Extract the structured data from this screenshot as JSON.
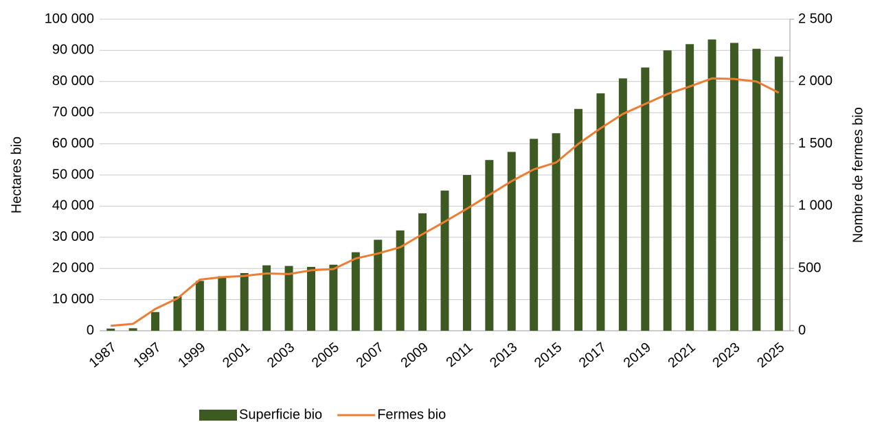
{
  "chart_data": {
    "type": "bar-line",
    "categories": [
      "1987",
      null,
      "1997",
      null,
      "1999",
      null,
      "2001",
      null,
      "2003",
      null,
      "2005",
      null,
      "2007",
      null,
      "2009",
      null,
      "2011",
      null,
      "2013",
      null,
      "2015",
      null,
      "2017",
      null,
      "2019",
      null,
      "2021",
      null,
      "2023",
      null,
      "2025"
    ],
    "ylabel": "Hectares bio",
    "y2label": "Nombre de fermes bio",
    "ylim": [
      0,
      100000
    ],
    "yticks": [
      0,
      {
        "value": 10000,
        "label": "10 000"
      },
      {
        "value": 20000,
        "label": "20 000"
      },
      {
        "value": 30000,
        "label": "30 000"
      },
      {
        "value": 40000,
        "label": "40 000"
      },
      {
        "value": 50000,
        "label": "50 000"
      },
      {
        "value": 60000,
        "label": "60 000"
      },
      {
        "value": 70000,
        "label": "70 000"
      },
      {
        "value": 80000,
        "label": "80 000"
      },
      {
        "value": 90000,
        "label": "90 000"
      },
      {
        "value": 100000,
        "label": "100 000"
      }
    ],
    "y2lim": [
      0,
      2500
    ],
    "y2ticks": [
      0,
      500,
      {
        "value": 1000,
        "label": "1 000"
      },
      {
        "value": 1500,
        "label": "1 500"
      },
      {
        "value": 2000,
        "label": "2 000"
      },
      {
        "value": 2500,
        "label": "2 500"
      }
    ],
    "grid": true,
    "series": [
      {
        "name": "Superficie bio",
        "type": "bar",
        "color": "#3d5a23",
        "values": [
          700,
          800,
          6000,
          11000,
          16000,
          17500,
          18500,
          21000,
          20800,
          20500,
          21200,
          25200,
          29200,
          32200,
          37700,
          45000,
          50000,
          54800,
          57400,
          61600,
          63400,
          71200,
          76200,
          81000,
          84500,
          90000,
          92000,
          93500,
          92400,
          90500,
          88000
        ]
      },
      {
        "name": "Fermes bio",
        "type": "line",
        "axis": "y2",
        "color": "#ed7d31",
        "values": [
          40,
          55,
          175,
          260,
          410,
          430,
          440,
          460,
          455,
          485,
          495,
          580,
          620,
          670,
          775,
          875,
          980,
          1090,
          1200,
          1295,
          1350,
          1500,
          1625,
          1740,
          1820,
          1900,
          1960,
          2025,
          2020,
          2000,
          1910
        ]
      }
    ]
  }
}
